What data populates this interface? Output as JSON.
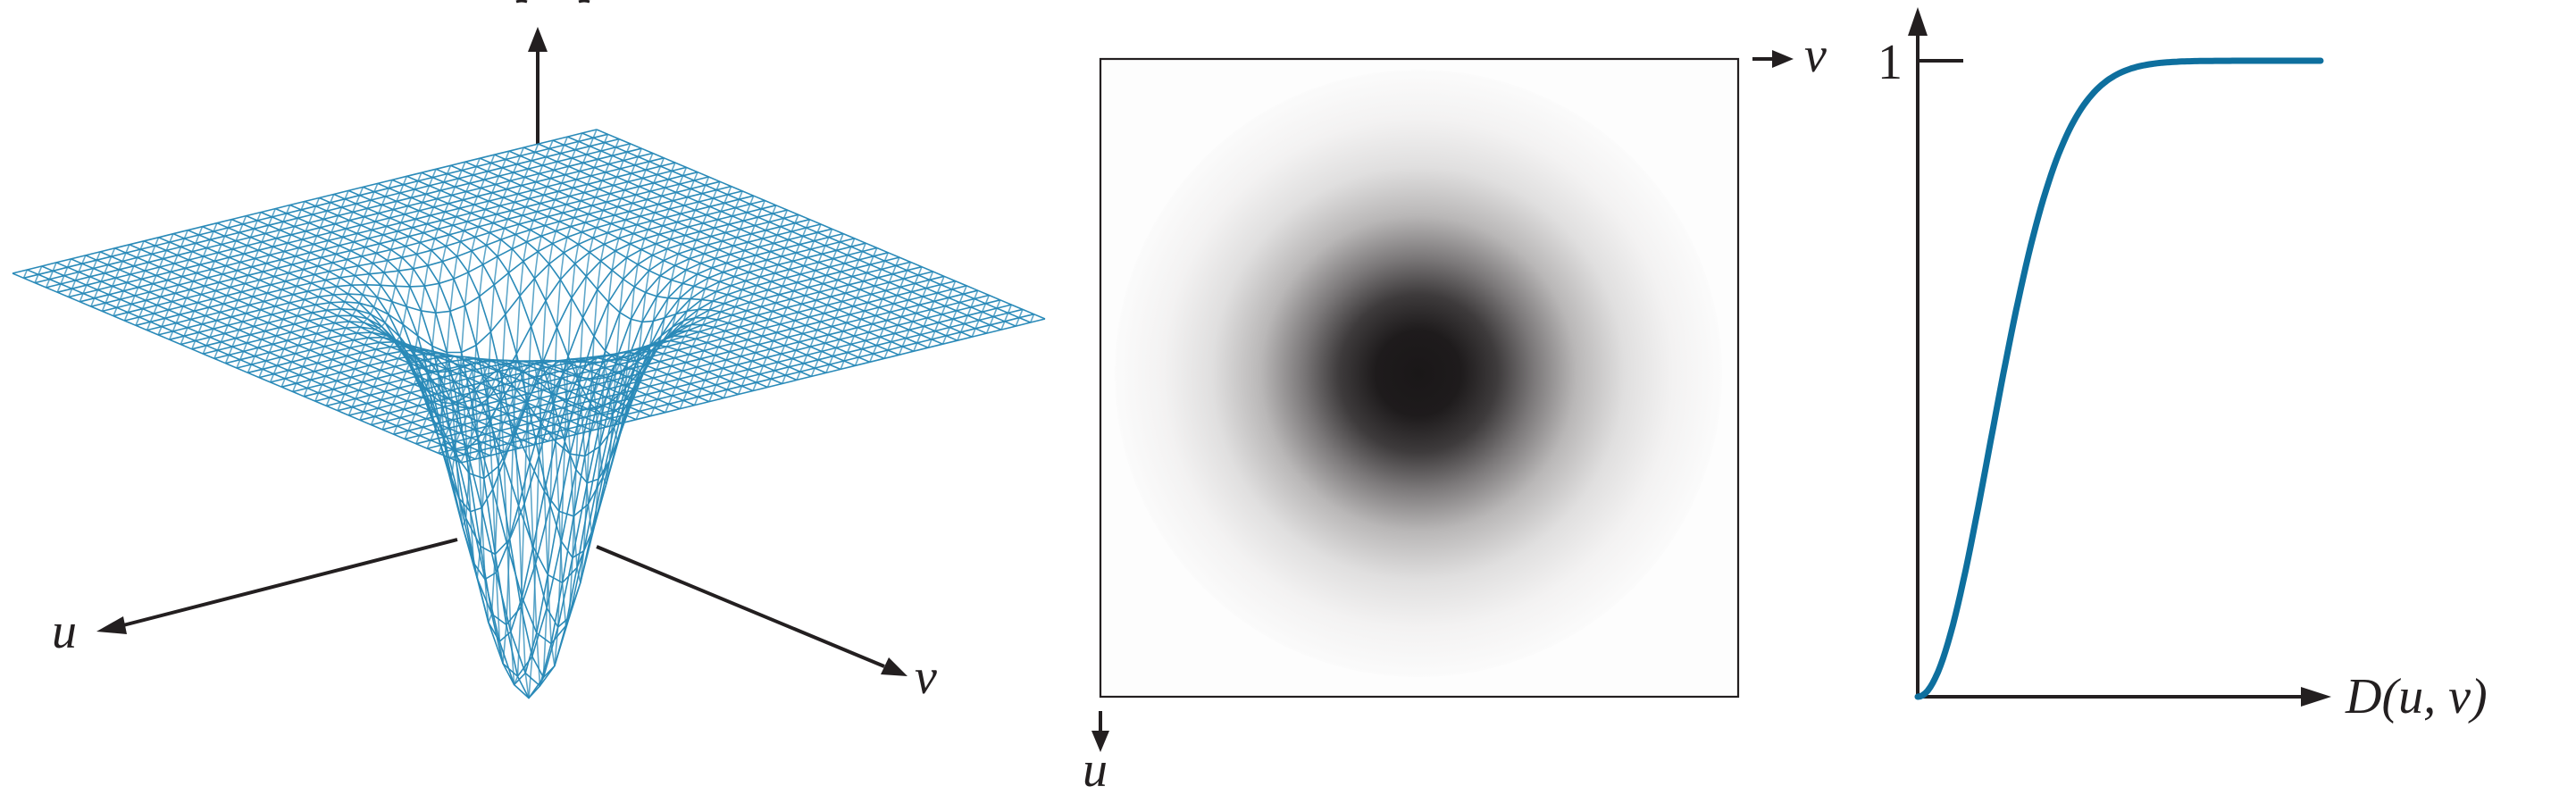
{
  "colors": {
    "mesh": "#2a8ab8",
    "curve": "#0e6f9e",
    "axis": "#231f20",
    "spot_dark": "#1a1718"
  },
  "panel_surface": {
    "labels": {
      "u_axis": "u",
      "v_axis": "v"
    }
  },
  "panel_image": {
    "labels": {
      "v_axis": "v",
      "u_axis": "u"
    }
  },
  "panel_profile": {
    "labels": {
      "y_tick": "1",
      "x_axis": "D(u, v)"
    },
    "curve": "sigmoid-rise-to-1"
  }
}
